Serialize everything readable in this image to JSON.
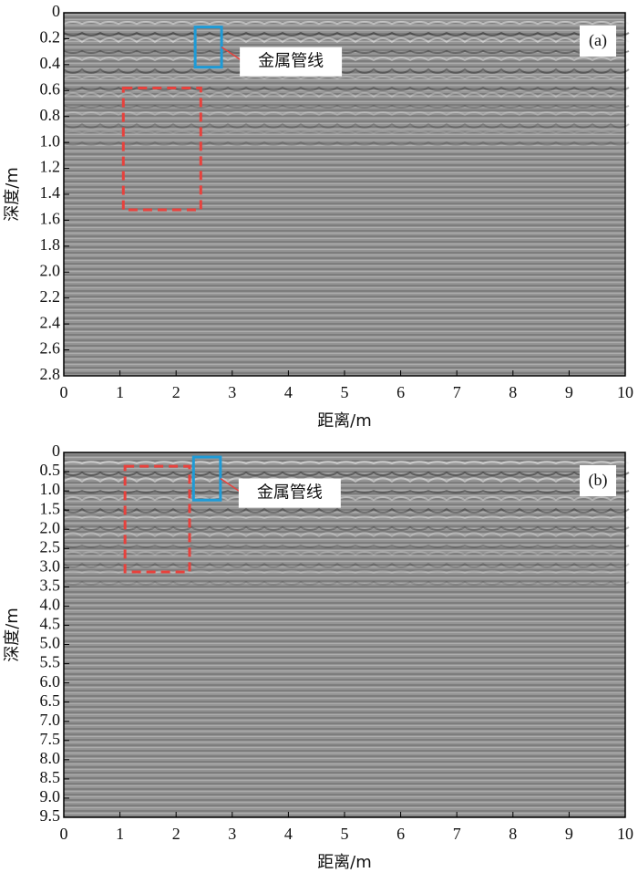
{
  "chart_data": [
    {
      "type": "radargram",
      "panel_label": "(a)",
      "xlabel": "距离/m",
      "ylabel": "深度/m",
      "xlim": [
        0,
        10
      ],
      "xticks": [
        0,
        1,
        2,
        3,
        4,
        5,
        6,
        7,
        8,
        9,
        10
      ],
      "ylim": [
        0,
        2.8
      ],
      "y_inverted": true,
      "yticks": [
        0,
        0.2,
        0.4,
        0.6,
        0.8,
        {
          "value": 1,
          "label": "1.0"
        },
        1.2,
        1.4,
        1.6,
        1.8,
        {
          "value": 2,
          "label": "2.0"
        },
        2.2,
        2.4,
        2.6,
        2.8
      ],
      "regions": [
        {
          "name": "金属管线",
          "color": "#1e9bd7",
          "x": [
            2.34,
            2.81
          ],
          "y": [
            0.11,
            0.42
          ]
        },
        {
          "color": "#e8413c",
          "x": [
            1.06,
            2.44
          ],
          "y": [
            0.58,
            1.52
          ]
        }
      ]
    },
    {
      "type": "radargram",
      "panel_label": "(b)",
      "xlabel": "距离/m",
      "ylabel": "深度/m",
      "xlim": [
        0,
        10
      ],
      "xticks": [
        0,
        1,
        2,
        3,
        4,
        5,
        6,
        7,
        8,
        9,
        10
      ],
      "ylim": [
        0,
        9.5
      ],
      "y_inverted": true,
      "yticks": [
        0,
        0.5,
        {
          "value": 1,
          "label": "1.0"
        },
        1.5,
        {
          "value": 2,
          "label": "2.0"
        },
        2.5,
        {
          "value": 3,
          "label": "3.0"
        },
        3.5,
        {
          "value": 4,
          "label": "4.0"
        },
        4.5,
        {
          "value": 5,
          "label": "5.0"
        },
        5.5,
        {
          "value": 6,
          "label": "6.0"
        },
        6.5,
        {
          "value": 7,
          "label": "7.0"
        },
        7.5,
        {
          "value": 8,
          "label": "8.0"
        },
        8.5,
        {
          "value": 9,
          "label": "9.0"
        },
        9.5
      ],
      "regions": [
        {
          "name": "金属管线",
          "color": "#1e9bd7",
          "x": [
            2.31,
            2.79
          ],
          "y": [
            0.12,
            1.24
          ]
        },
        {
          "color": "#e8413c",
          "x": [
            1.09,
            2.24
          ],
          "y": [
            0.36,
            3.11
          ]
        }
      ]
    }
  ]
}
